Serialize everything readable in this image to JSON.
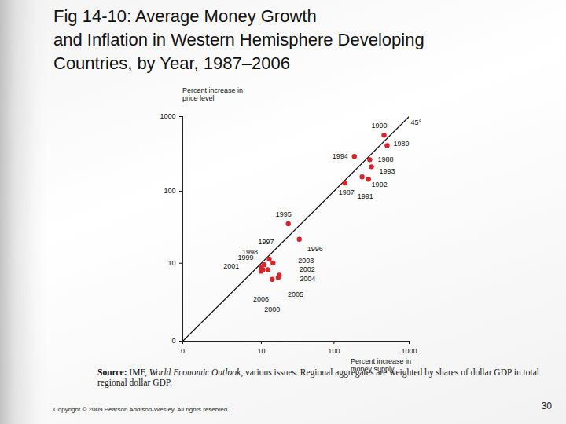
{
  "chart_data": {
    "type": "scatter",
    "title": "Fig 14-10: Average Money Growth\nand Inflation in Western Hemisphere Developing\nCountries, by Year, 1987–2006",
    "x_label": "Percent increase in\nmoney supply",
    "y_label": "Percent increase in\nprice level",
    "labels": [
      "1987",
      "1988",
      "1989",
      "1990",
      "1991",
      "1992",
      "1993",
      "1994",
      "1995",
      "1996",
      "1997",
      "1998",
      "1999",
      "2000",
      "2001",
      "2002",
      "2003",
      "2004",
      "2005",
      "2006"
    ],
    "x": [
      140,
      300,
      510,
      464,
      288,
      237,
      316,
      187,
      24,
      34,
      13,
      11,
      10,
      14.3,
      10.5,
      12.4,
      14.7,
      18,
      17.4,
      9.9
    ],
    "y": [
      129,
      265,
      410,
      562,
      145,
      156,
      213,
      293,
      36,
      22,
      11.5,
      9.5,
      8.8,
      5.7,
      8,
      8,
      10.1,
      6.6,
      6.1,
      7.6
    ],
    "color": "#d7262b",
    "marker": "circle",
    "log": true,
    "grid": false,
    "xlim": [
      0,
      1000
    ],
    "ylim": [
      0,
      1000
    ],
    "xticks": [
      0,
      10,
      100,
      1000
    ],
    "yticks": [
      0,
      10,
      100,
      1000
    ],
    "reference_line": {
      "label": "45°",
      "x": [
        0,
        1000
      ],
      "y": [
        0,
        1000
      ]
    },
    "source": [
      "Source:",
      " IMF, ",
      "World Economic Outlook",
      ", various issues. Regional aggregates are weighted by shares of dollar GDP in total regional dollar GDP."
    ],
    "copyright": "Copyright © 2009 Pearson Addison-Wesley. All rights reserved.",
    "page": "30"
  }
}
